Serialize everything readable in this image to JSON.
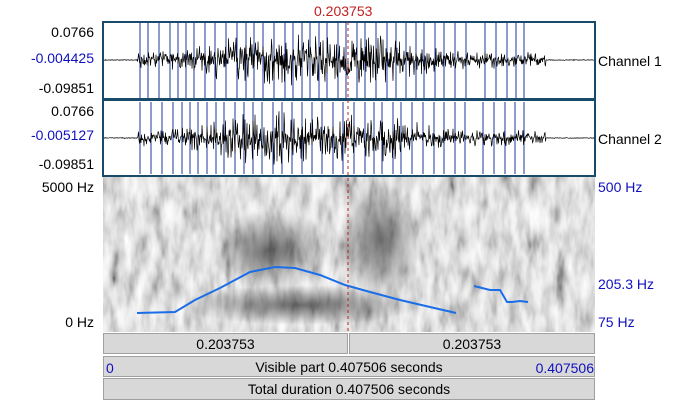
{
  "cursor": {
    "time": "0.203753"
  },
  "channels": [
    {
      "name": "Channel 1",
      "top": "0.0766",
      "middle": "-0.004425",
      "bottom": "-0.09851"
    },
    {
      "name": "Channel 2",
      "top": "0.0766",
      "middle": "-0.005127",
      "bottom": "-0.09851"
    }
  ],
  "spectrogram": {
    "top": "5000 Hz",
    "bottom": "0 Hz"
  },
  "pitch": {
    "top": "500 Hz",
    "middle": "205.3 Hz",
    "bottom": "75 Hz"
  },
  "bars": {
    "left_cell": "0.203753",
    "right_cell": "0.203753",
    "visible_start": "0",
    "visible_label": "Visible part 0.407506 seconds",
    "visible_end": "0.407506",
    "total_label": "Total duration 0.407506 seconds"
  }
}
